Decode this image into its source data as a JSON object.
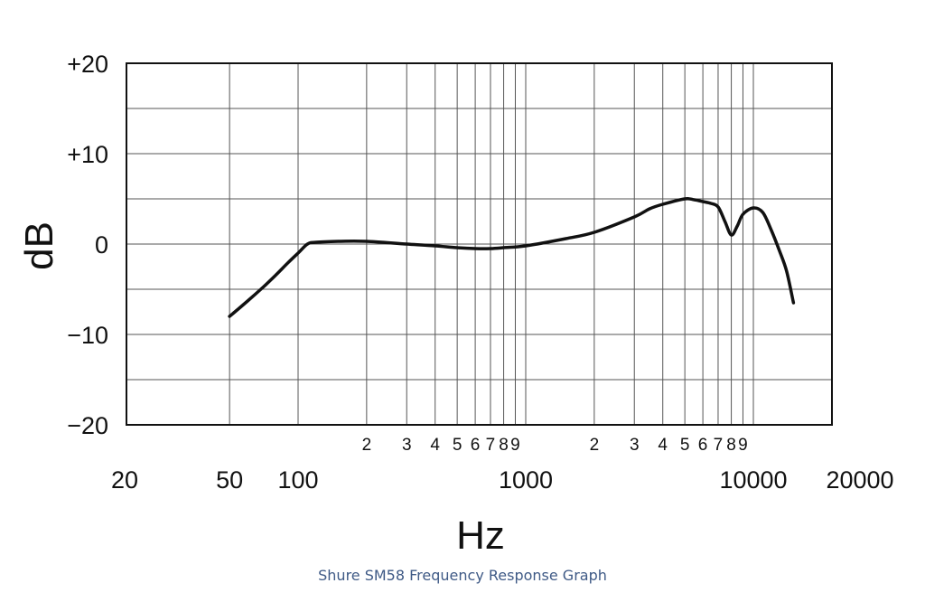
{
  "caption": "Shure SM58 Frequency Response Graph",
  "chart_data": {
    "type": "line",
    "xlabel": "Hz",
    "ylabel": "dB",
    "x_scale": "log",
    "xlim": [
      20,
      20000
    ],
    "ylim": [
      -20,
      20
    ],
    "grid": true,
    "y_tick_labels": [
      {
        "value": 20,
        "label": "+20"
      },
      {
        "value": 10,
        "label": "+10"
      },
      {
        "value": 0,
        "label": "0"
      },
      {
        "value": -10,
        "label": "−10"
      },
      {
        "value": -20,
        "label": "−20"
      }
    ],
    "x_major_tick_labels": [
      {
        "value": 20,
        "label": "20"
      },
      {
        "value": 50,
        "label": "50"
      },
      {
        "value": 100,
        "label": "100"
      },
      {
        "value": 1000,
        "label": "1000"
      },
      {
        "value": 10000,
        "label": "10000"
      },
      {
        "value": 20000,
        "label": "20000"
      }
    ],
    "x_minor_tick_labels": [
      {
        "value": 200,
        "label": "2"
      },
      {
        "value": 300,
        "label": "3"
      },
      {
        "value": 400,
        "label": "4"
      },
      {
        "value": 500,
        "label": "5"
      },
      {
        "value": 600,
        "label": "6"
      },
      {
        "value": 700,
        "label": "7"
      },
      {
        "value": 800,
        "label": "8"
      },
      {
        "value": 900,
        "label": "9"
      },
      {
        "value": 2000,
        "label": "2"
      },
      {
        "value": 3000,
        "label": "3"
      },
      {
        "value": 4000,
        "label": "4"
      },
      {
        "value": 5000,
        "label": "5"
      },
      {
        "value": 6000,
        "label": "6"
      },
      {
        "value": 7000,
        "label": "7"
      },
      {
        "value": 8000,
        "label": "8"
      },
      {
        "value": 9000,
        "label": "9"
      }
    ],
    "series": [
      {
        "color": "#111111",
        "x": [
          50,
          60,
          70,
          80,
          90,
          100,
          110,
          120,
          150,
          200,
          300,
          400,
          500,
          600,
          700,
          800,
          1000,
          1500,
          2000,
          3000,
          3500,
          4000,
          5000,
          5500,
          6000,
          6500,
          7000,
          7500,
          8000,
          8500,
          9000,
          10000,
          11000,
          12000,
          13000,
          14000,
          15000
        ],
        "y": [
          -8,
          -6.3,
          -4.8,
          -3.4,
          -2.1,
          -1.0,
          0,
          0.2,
          0.3,
          0.3,
          0,
          -0.2,
          -0.4,
          -0.5,
          -0.5,
          -0.4,
          -0.2,
          0.6,
          1.3,
          3.0,
          3.9,
          4.4,
          5.0,
          4.9,
          4.7,
          4.5,
          4.1,
          2.5,
          1.0,
          2.0,
          3.3,
          4.0,
          3.5,
          1.5,
          -0.7,
          -3.0,
          -6.5
        ]
      }
    ]
  }
}
